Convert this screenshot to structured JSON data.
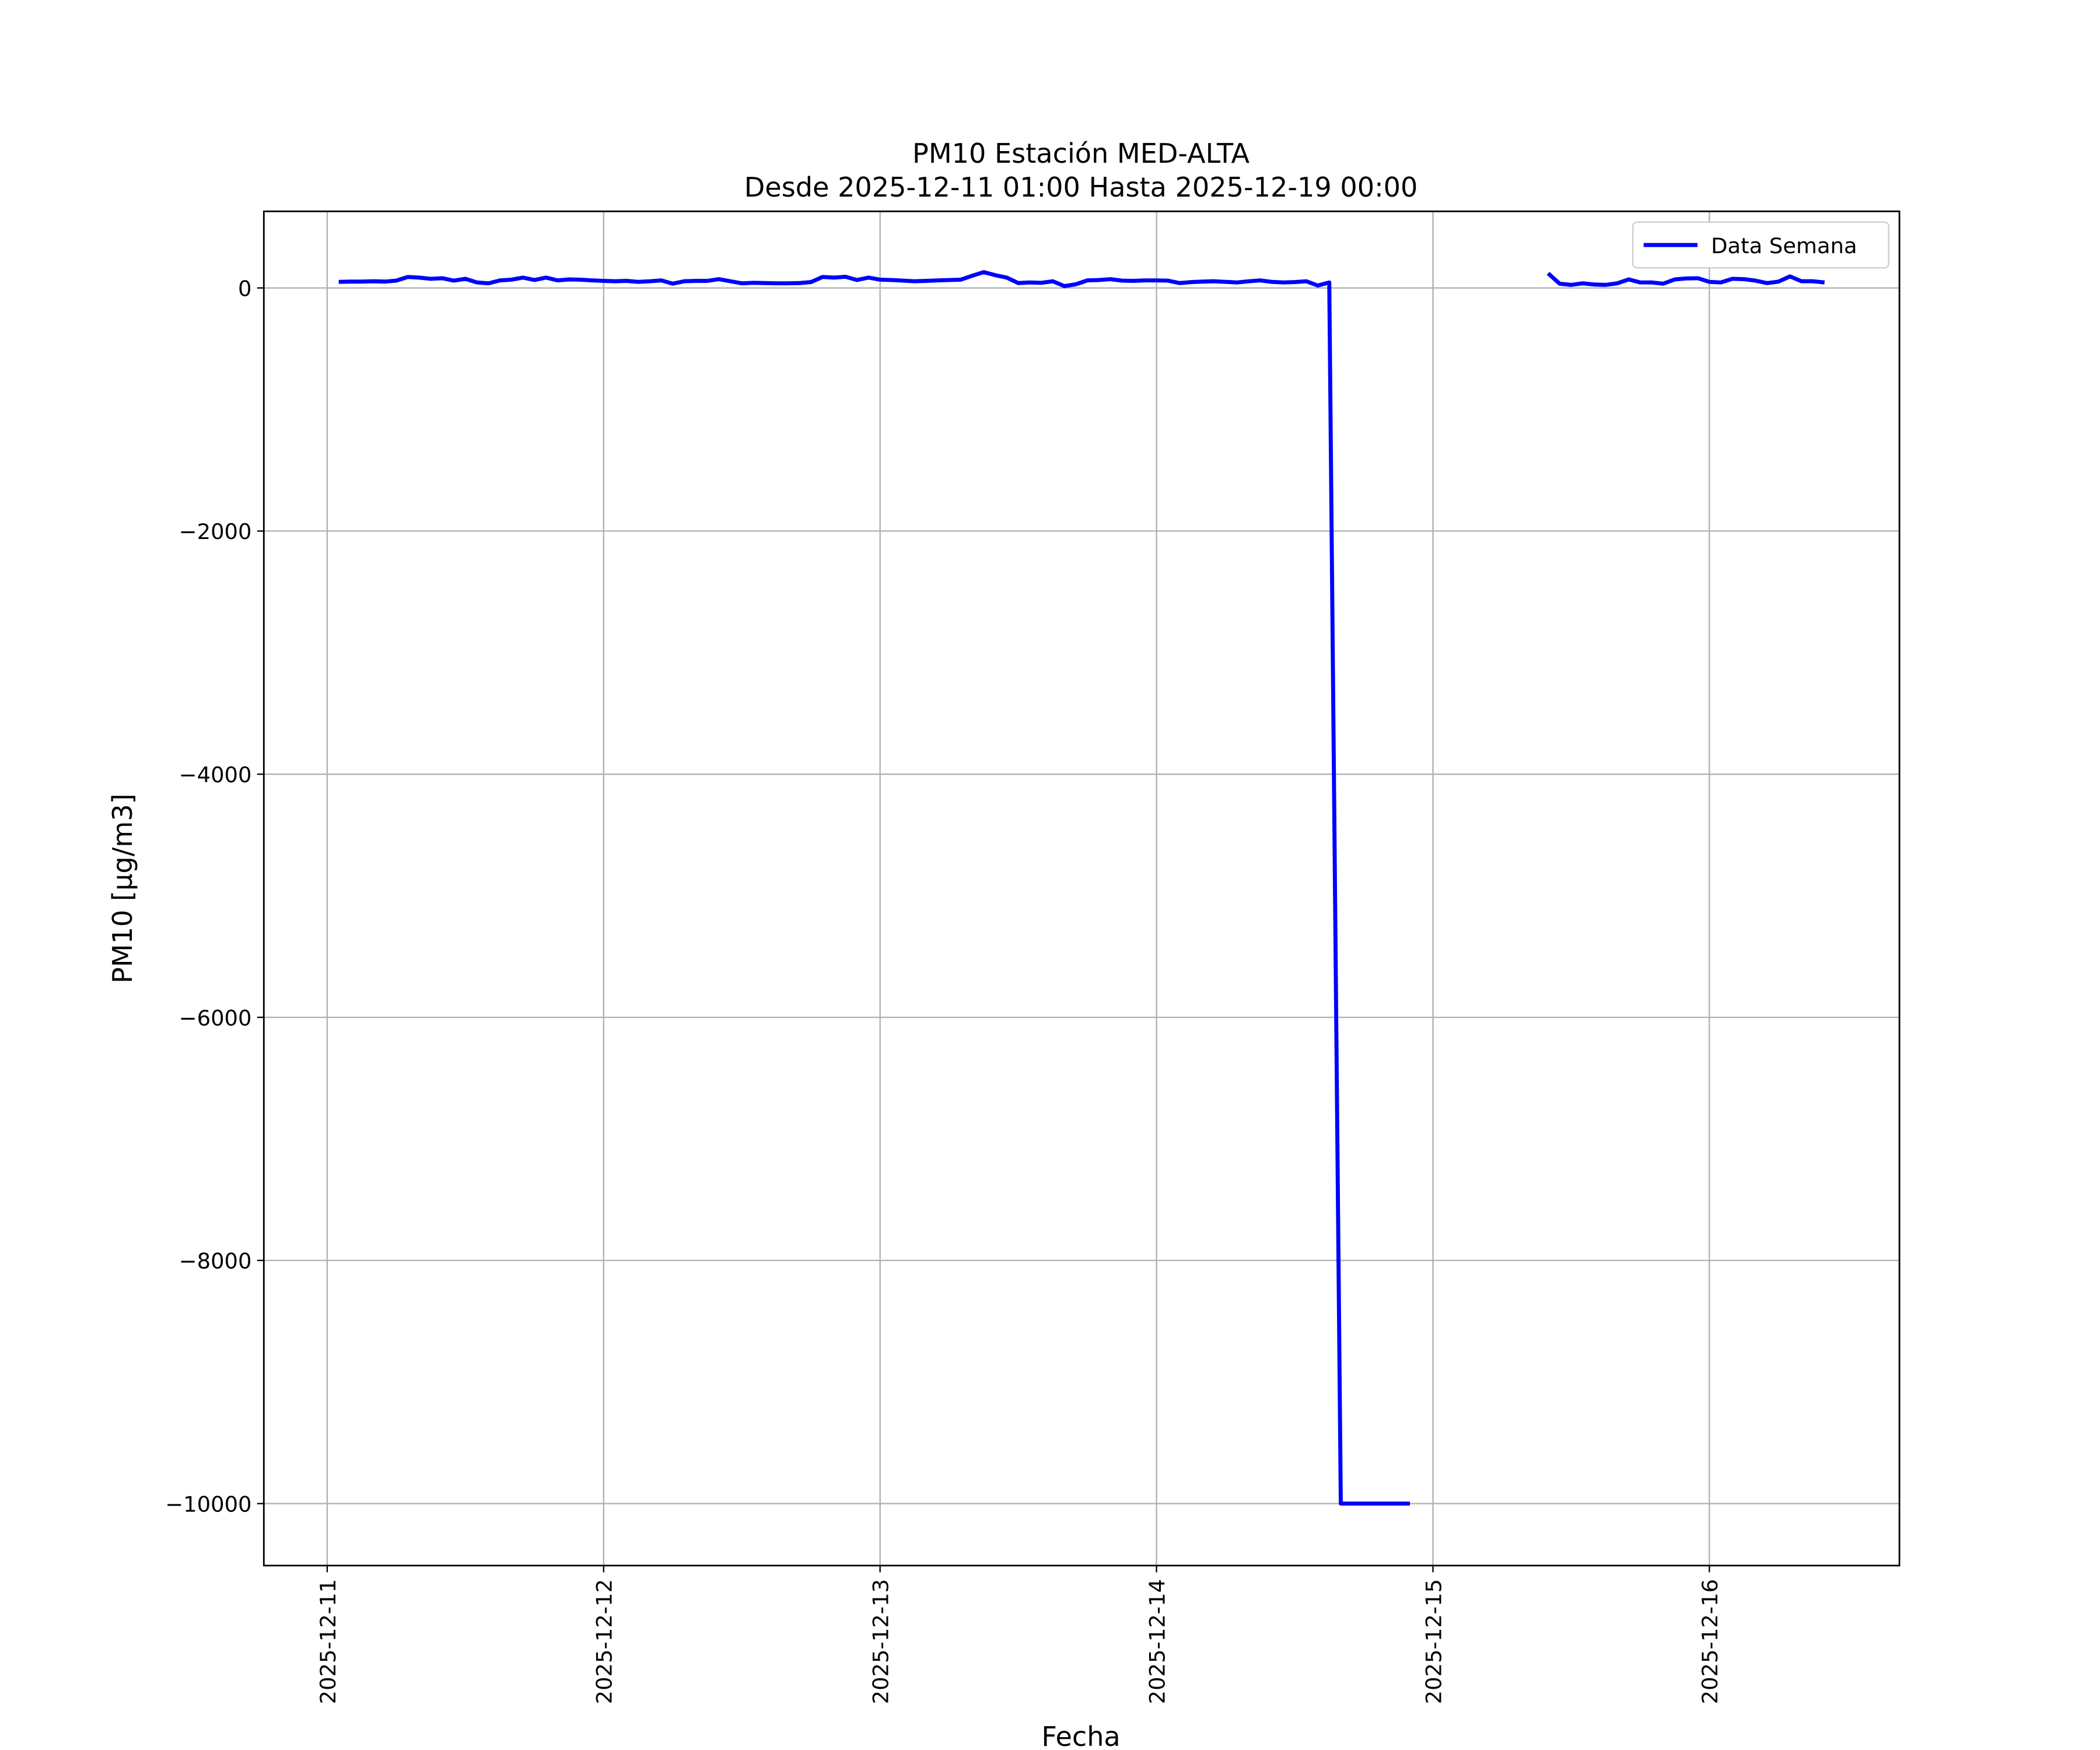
{
  "chart_data": {
    "type": "line",
    "title": "PM10 Estación MED-ALTA",
    "subtitle": "Desde 2025-12-11 01:00 Hasta 2025-12-19 00:00",
    "x_label": "Fecha",
    "y_label": "PM10 [μg/m3]",
    "x": [
      "2025-12-11 01:00",
      "2025-12-11 02:00",
      "2025-12-11 03:00",
      "2025-12-11 04:00",
      "2025-12-11 05:00",
      "2025-12-11 06:00",
      "2025-12-11 07:00",
      "2025-12-11 08:00",
      "2025-12-11 09:00",
      "2025-12-11 10:00",
      "2025-12-11 11:00",
      "2025-12-11 12:00",
      "2025-12-11 13:00",
      "2025-12-11 14:00",
      "2025-12-11 15:00",
      "2025-12-11 16:00",
      "2025-12-11 17:00",
      "2025-12-11 18:00",
      "2025-12-11 19:00",
      "2025-12-11 20:00",
      "2025-12-11 21:00",
      "2025-12-11 22:00",
      "2025-12-11 23:00",
      "2025-12-12 00:00",
      "2025-12-12 01:00",
      "2025-12-12 02:00",
      "2025-12-12 03:00",
      "2025-12-12 04:00",
      "2025-12-12 05:00",
      "2025-12-12 06:00",
      "2025-12-12 07:00",
      "2025-12-12 08:00",
      "2025-12-12 09:00",
      "2025-12-12 10:00",
      "2025-12-12 11:00",
      "2025-12-12 12:00",
      "2025-12-12 13:00",
      "2025-12-12 14:00",
      "2025-12-12 15:00",
      "2025-12-12 16:00",
      "2025-12-12 17:00",
      "2025-12-12 18:00",
      "2025-12-12 19:00",
      "2025-12-12 20:00",
      "2025-12-12 21:00",
      "2025-12-12 22:00",
      "2025-12-12 23:00",
      "2025-12-13 00:00",
      "2025-12-13 01:00",
      "2025-12-13 02:00",
      "2025-12-13 03:00",
      "2025-12-13 04:00",
      "2025-12-13 05:00",
      "2025-12-13 06:00",
      "2025-12-13 07:00",
      "2025-12-13 08:00",
      "2025-12-13 09:00",
      "2025-12-13 10:00",
      "2025-12-13 11:00",
      "2025-12-13 12:00",
      "2025-12-13 13:00",
      "2025-12-13 14:00",
      "2025-12-13 15:00",
      "2025-12-13 16:00",
      "2025-12-13 17:00",
      "2025-12-13 18:00",
      "2025-12-13 19:00",
      "2025-12-13 20:00",
      "2025-12-13 21:00",
      "2025-12-13 22:00",
      "2025-12-13 23:00",
      "2025-12-14 00:00",
      "2025-12-14 01:00",
      "2025-12-14 02:00",
      "2025-12-14 03:00",
      "2025-12-14 04:00",
      "2025-12-14 05:00",
      "2025-12-14 06:00",
      "2025-12-14 07:00",
      "2025-12-14 08:00",
      "2025-12-14 09:00",
      "2025-12-14 10:00",
      "2025-12-14 11:00",
      "2025-12-14 12:00",
      "2025-12-14 13:00",
      "2025-12-14 14:00",
      "2025-12-14 15:00",
      "2025-12-14 16:00",
      "2025-12-14 17:00",
      "2025-12-14 18:00",
      "2025-12-14 19:00",
      "2025-12-14 20:00",
      "2025-12-14 21:00",
      "2025-12-14 22:00",
      "2025-12-15 00:00",
      "2025-12-15 10:00",
      "2025-12-15 11:00",
      "2025-12-15 12:00",
      "2025-12-15 13:00",
      "2025-12-15 14:00",
      "2025-12-15 15:00",
      "2025-12-15 16:00",
      "2025-12-15 17:00",
      "2025-12-15 18:00",
      "2025-12-15 19:00",
      "2025-12-15 20:00",
      "2025-12-15 21:00",
      "2025-12-15 22:00",
      "2025-12-15 23:00",
      "2025-12-16 00:00",
      "2025-12-16 01:00",
      "2025-12-16 02:00",
      "2025-12-16 03:00",
      "2025-12-16 04:00",
      "2025-12-16 05:00",
      "2025-12-16 06:00",
      "2025-12-16 07:00",
      "2025-12-16 08:00",
      "2025-12-16 09:00",
      "2025-12-16 10:00"
    ],
    "series": [
      {
        "name": "Data Semana",
        "color": "#0000ff",
        "values": [
          50,
          52,
          52,
          55,
          52,
          60,
          90,
          85,
          75,
          80,
          60,
          75,
          45,
          38,
          62,
          68,
          85,
          65,
          85,
          62,
          70,
          68,
          62,
          58,
          55,
          58,
          50,
          55,
          62,
          35,
          55,
          58,
          58,
          72,
          55,
          38,
          42,
          40,
          38,
          38,
          40,
          48,
          90,
          85,
          92,
          65,
          85,
          68,
          65,
          60,
          55,
          58,
          62,
          65,
          68,
          100,
          130,
          105,
          85,
          40,
          45,
          42,
          55,
          15,
          30,
          62,
          65,
          72,
          60,
          58,
          62,
          62,
          60,
          40,
          48,
          52,
          55,
          50,
          45,
          55,
          62,
          50,
          45,
          48,
          55,
          20,
          45,
          -10000,
          -10000,
          -10000,
          -10000,
          -10000,
          -10000,
          -10000,
          null,
          120,
          35,
          25,
          38,
          28,
          25,
          38,
          70,
          45,
          45,
          35,
          70,
          78,
          80,
          50,
          45,
          75,
          72,
          60,
          40,
          52,
          95,
          55,
          55,
          45
        ]
      }
    ],
    "xlim": [
      "2025-12-10 18:30",
      "2025-12-16 16:30"
    ],
    "xticks": [
      "2025-12-11",
      "2025-12-12",
      "2025-12-13",
      "2025-12-14",
      "2025-12-15",
      "2025-12-16"
    ],
    "ylim": [
      -10510,
      630
    ],
    "yticks": [
      0,
      {
        "value": -2000,
        "label": "−2000"
      },
      {
        "value": -4000,
        "label": "−4000"
      },
      {
        "value": -6000,
        "label": "−6000"
      },
      {
        "value": -8000,
        "label": "−8000"
      },
      {
        "value": -10000,
        "label": "−10000"
      }
    ],
    "grid": true,
    "legend": "upper right"
  }
}
